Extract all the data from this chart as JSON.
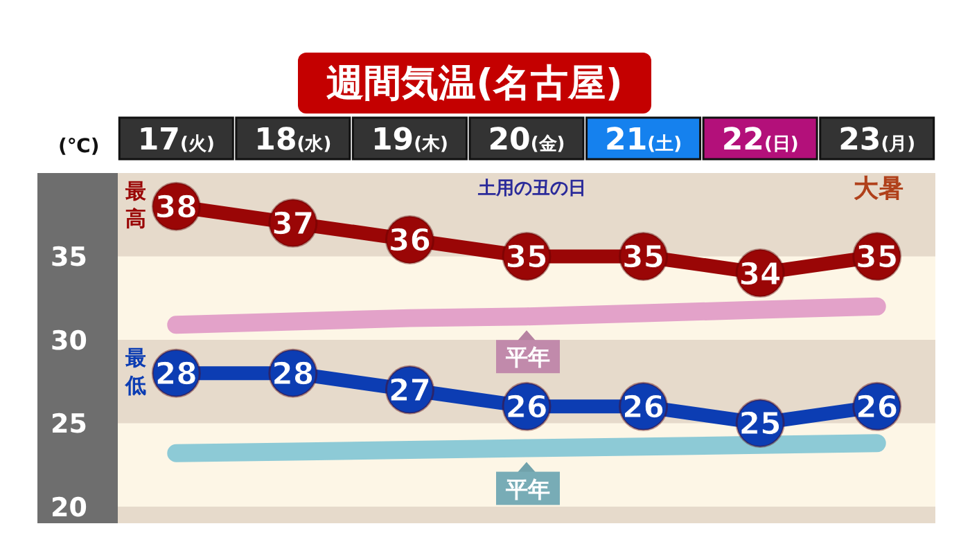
{
  "chart_data": {
    "type": "line",
    "title": "週間気温(名古屋)",
    "ylabel": "(℃)",
    "categories": [
      "17(火)",
      "18(水)",
      "19(木)",
      "20(金)",
      "21(土)",
      "22(日)",
      "23(月)"
    ],
    "series": [
      {
        "name": "平年",
        "color": "#e3a2c9",
        "marker": "none",
        "values": [
          30.9,
          31.1,
          31.3,
          31.4,
          31.6,
          31.8,
          32.0
        ]
      },
      {
        "name": "平年",
        "color": "#8dcad6",
        "marker": "none",
        "values": [
          23.2,
          23.3,
          23.4,
          23.5,
          23.6,
          23.7,
          23.8
        ]
      },
      {
        "name": "最高",
        "color": "#9a0606",
        "marker": "circle",
        "values": [
          38,
          37,
          36,
          35,
          35,
          34,
          35
        ],
        "value_labels": [
          "38",
          "37",
          "36",
          "35",
          "35",
          "34",
          "35"
        ]
      },
      {
        "name": "最低",
        "color": "#0c3db3",
        "marker": "circle",
        "values": [
          28,
          28,
          27,
          26,
          26,
          25,
          26
        ],
        "value_labels": [
          "28",
          "28",
          "27",
          "26",
          "26",
          "25",
          "26"
        ]
      }
    ],
    "ylim": [
      19,
      40
    ],
    "yticks": [
      20,
      25,
      30,
      35
    ],
    "bands": [
      {
        "axis": "y",
        "from": 35,
        "to": 40,
        "color": "#e6dacb"
      },
      {
        "axis": "y",
        "from": 25,
        "to": 30,
        "color": "#e6dacb"
      },
      {
        "axis": "y",
        "from": 19,
        "to": 20,
        "color": "#e6dacb"
      }
    ],
    "annotations": [
      "土用の丑の日",
      "大暑"
    ]
  }
}
